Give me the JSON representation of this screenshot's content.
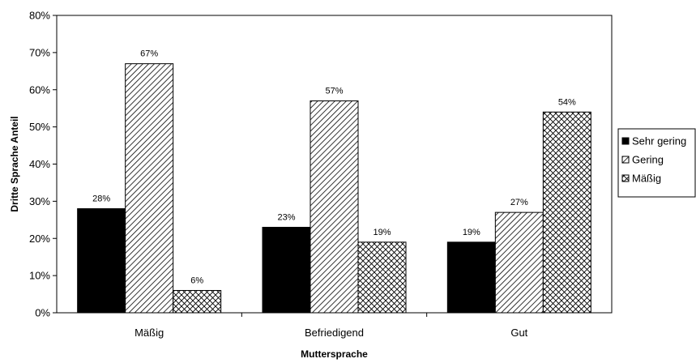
{
  "chart_data": {
    "type": "bar",
    "xlabel": "Muttersprache",
    "ylabel": "Dritte Sprache Anteil",
    "categories": [
      "Mäßig",
      "Befriedigend",
      "Gut"
    ],
    "series": [
      {
        "name": "Sehr gering",
        "values": [
          28,
          23,
          19
        ],
        "labels": [
          "28%",
          "23%",
          "19%"
        ],
        "pattern": "solid"
      },
      {
        "name": "Gering",
        "values": [
          67,
          57,
          27
        ],
        "labels": [
          "67%",
          "57%",
          "27%"
        ],
        "pattern": "diagonal-hatch"
      },
      {
        "name": "Mäßig",
        "values": [
          6,
          19,
          54
        ],
        "labels": [
          "6%",
          "19%",
          "54%"
        ],
        "pattern": "crosshatch"
      }
    ],
    "ylim": [
      0,
      80
    ],
    "yticks": [
      "0%",
      "10%",
      "20%",
      "30%",
      "40%",
      "50%",
      "60%",
      "70%",
      "80%"
    ],
    "legend_position": "right",
    "grid": false,
    "colors": {
      "bar_fill": "#000000",
      "background": "#ffffff"
    }
  }
}
